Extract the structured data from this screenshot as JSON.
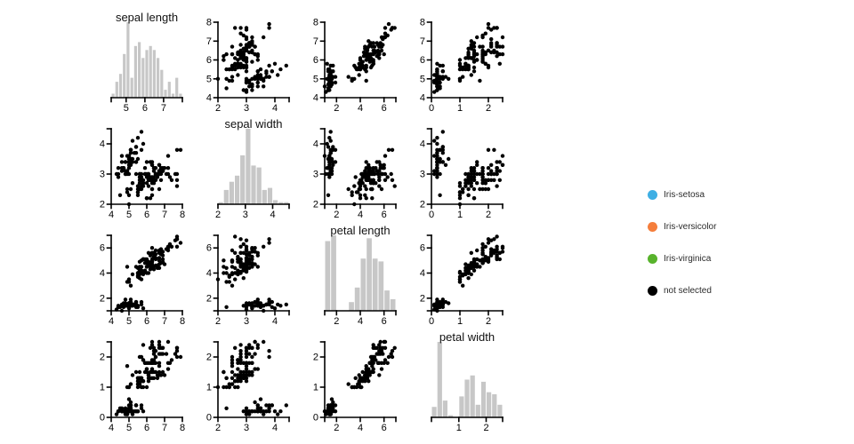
{
  "legend": {
    "items": [
      {
        "label": "Iris-setosa",
        "color": "#3fafe4"
      },
      {
        "label": "Iris-versicolor",
        "color": "#f57e3c"
      },
      {
        "label": "Iris-virginica",
        "color": "#58b32c"
      },
      {
        "label": "not selected",
        "color": "#000000"
      }
    ]
  },
  "chart_data": {
    "type": "scatter",
    "subtype": "scatterplot-matrix",
    "fields": [
      "sepal length",
      "sepal width",
      "petal length",
      "petal width"
    ],
    "field_keys": [
      "sepal_length",
      "sepal_width",
      "petal_length",
      "petal_width"
    ],
    "point_color": "#000000",
    "bar_color": "#c7c7c7",
    "legend_position": "right",
    "grid": "off",
    "scales": {
      "sepal_length": {
        "domain": [
          4,
          8
        ],
        "ticks": [
          4,
          5,
          6,
          7,
          8
        ]
      },
      "sepal_width": {
        "domain": [
          2,
          4.5
        ],
        "ticks": [
          2,
          3,
          4
        ]
      },
      "petal_length": {
        "domain": [
          1,
          7
        ],
        "ticks": [
          2,
          4,
          6
        ]
      },
      "petal_width": {
        "domain": [
          0,
          2.5
        ],
        "ticks": [
          0,
          1,
          2
        ]
      }
    },
    "histograms": {
      "sepal_length": {
        "domain": [
          4.2,
          8.0
        ],
        "ticks": [
          5,
          6,
          7
        ],
        "bin_start": 4.2,
        "bin_step": 0.2
      },
      "sepal_width": {
        "domain": [
          2.0,
          4.6
        ],
        "ticks": [
          2,
          3,
          4
        ],
        "bin_start": 2.0,
        "bin_step": 0.2
      },
      "petal_length": {
        "domain": [
          1.0,
          7.0
        ],
        "ticks": [
          2,
          4,
          6
        ],
        "bin_start": 1.0,
        "bin_step": 0.5
      },
      "petal_width": {
        "domain": [
          0.0,
          2.6
        ],
        "ticks": [
          1,
          2
        ],
        "bin_start": 0.0,
        "bin_step": 0.2
      }
    },
    "data": {
      "sepal_length": [
        5.1,
        4.9,
        4.7,
        4.6,
        5.0,
        5.4,
        4.6,
        5.0,
        4.4,
        4.9,
        5.4,
        4.8,
        4.8,
        4.3,
        5.8,
        5.7,
        5.4,
        5.1,
        5.7,
        5.1,
        5.4,
        5.1,
        4.6,
        5.1,
        4.8,
        5.0,
        5.0,
        5.2,
        5.2,
        4.7,
        4.8,
        5.4,
        5.2,
        5.5,
        4.9,
        5.0,
        5.5,
        4.9,
        4.4,
        5.1,
        5.0,
        4.5,
        4.4,
        5.0,
        5.1,
        4.8,
        5.1,
        4.6,
        5.3,
        5.0,
        7.0,
        6.4,
        6.9,
        5.5,
        6.5,
        5.7,
        6.3,
        4.9,
        6.6,
        5.2,
        5.0,
        5.9,
        6.0,
        6.1,
        5.6,
        6.7,
        5.6,
        5.8,
        6.2,
        5.6,
        5.9,
        6.1,
        6.3,
        6.1,
        6.4,
        6.6,
        6.8,
        6.7,
        6.0,
        5.7,
        5.5,
        5.5,
        5.8,
        6.0,
        5.4,
        6.0,
        6.7,
        6.3,
        5.6,
        5.5,
        5.5,
        6.1,
        5.8,
        5.0,
        5.6,
        5.7,
        5.7,
        6.2,
        5.1,
        5.7,
        6.3,
        5.8,
        7.1,
        6.3,
        6.5,
        7.6,
        4.9,
        7.3,
        6.7,
        7.2,
        6.5,
        6.4,
        6.8,
        5.7,
        5.8,
        6.4,
        6.5,
        7.7,
        7.7,
        6.0,
        6.9,
        5.6,
        7.7,
        6.3,
        6.7,
        7.2,
        6.2,
        6.1,
        6.4,
        7.2,
        7.4,
        7.9,
        6.4,
        6.3,
        6.1,
        7.7,
        6.3,
        6.4,
        6.0,
        6.9,
        6.7,
        6.9,
        5.8,
        6.8,
        6.7,
        6.7,
        6.3,
        6.5,
        6.2,
        5.9
      ],
      "sepal_width": [
        3.5,
        3.0,
        3.2,
        3.1,
        3.6,
        3.9,
        3.4,
        3.4,
        2.9,
        3.1,
        3.7,
        3.4,
        3.0,
        3.0,
        4.0,
        4.4,
        3.9,
        3.5,
        3.8,
        3.8,
        3.4,
        3.7,
        3.6,
        3.3,
        3.4,
        3.0,
        3.4,
        3.5,
        3.4,
        3.2,
        3.1,
        3.4,
        4.1,
        4.2,
        3.1,
        3.2,
        3.5,
        3.6,
        3.0,
        3.4,
        3.5,
        2.3,
        3.2,
        3.5,
        3.8,
        3.0,
        3.8,
        3.2,
        3.7,
        3.3,
        3.2,
        3.2,
        3.1,
        2.3,
        2.8,
        2.8,
        3.3,
        2.4,
        2.9,
        2.7,
        2.0,
        3.0,
        2.2,
        2.9,
        2.9,
        3.1,
        3.0,
        2.7,
        2.2,
        2.5,
        3.2,
        2.8,
        2.5,
        2.8,
        2.9,
        3.0,
        2.8,
        3.0,
        2.9,
        2.6,
        2.4,
        2.4,
        2.7,
        2.7,
        3.0,
        3.4,
        3.1,
        2.3,
        3.0,
        2.5,
        2.6,
        3.0,
        2.6,
        2.3,
        2.7,
        3.0,
        2.9,
        2.9,
        2.5,
        2.8,
        3.3,
        2.7,
        3.0,
        2.9,
        3.0,
        3.0,
        2.5,
        2.9,
        2.5,
        3.6,
        3.2,
        2.7,
        3.0,
        2.5,
        2.8,
        3.2,
        3.0,
        3.8,
        2.6,
        2.2,
        3.2,
        2.8,
        2.8,
        2.7,
        3.3,
        3.2,
        2.8,
        3.0,
        2.8,
        3.0,
        2.8,
        3.8,
        2.8,
        2.8,
        2.6,
        3.0,
        3.4,
        3.1,
        3.0,
        3.1,
        3.1,
        3.1,
        2.7,
        3.2,
        3.3,
        3.0,
        2.5,
        3.0,
        3.4,
        3.0
      ],
      "petal_length": [
        1.4,
        1.4,
        1.3,
        1.5,
        1.4,
        1.7,
        1.4,
        1.5,
        1.4,
        1.5,
        1.5,
        1.6,
        1.4,
        1.1,
        1.2,
        1.5,
        1.3,
        1.4,
        1.7,
        1.5,
        1.7,
        1.5,
        1.0,
        1.7,
        1.9,
        1.6,
        1.6,
        1.5,
        1.4,
        1.6,
        1.6,
        1.5,
        1.5,
        1.4,
        1.5,
        1.2,
        1.3,
        1.4,
        1.3,
        1.5,
        1.3,
        1.3,
        1.3,
        1.6,
        1.9,
        1.4,
        1.6,
        1.4,
        1.5,
        1.4,
        4.7,
        4.5,
        4.9,
        4.0,
        4.6,
        4.5,
        4.7,
        3.3,
        4.6,
        3.9,
        3.5,
        4.2,
        4.0,
        4.7,
        3.6,
        4.4,
        4.5,
        4.1,
        4.5,
        3.9,
        4.8,
        4.0,
        4.9,
        4.7,
        4.3,
        4.4,
        4.8,
        5.0,
        4.5,
        3.5,
        3.8,
        3.7,
        3.9,
        5.1,
        4.5,
        4.5,
        4.7,
        4.4,
        4.1,
        4.0,
        4.4,
        4.6,
        4.0,
        3.3,
        4.2,
        4.2,
        4.2,
        4.3,
        3.0,
        4.1,
        6.0,
        5.1,
        5.9,
        5.6,
        5.8,
        6.6,
        4.5,
        6.3,
        5.8,
        6.1,
        5.1,
        5.3,
        5.5,
        5.0,
        5.1,
        5.3,
        5.5,
        6.7,
        6.9,
        5.0,
        5.7,
        4.9,
        6.7,
        4.9,
        5.7,
        6.0,
        4.8,
        4.9,
        5.6,
        5.8,
        6.1,
        6.4,
        5.6,
        5.1,
        5.6,
        6.1,
        5.6,
        5.5,
        4.8,
        5.4,
        5.6,
        5.1,
        5.1,
        5.9,
        5.7,
        5.2,
        5.0,
        5.2,
        5.4,
        5.1
      ],
      "petal_width": [
        0.2,
        0.2,
        0.2,
        0.2,
        0.2,
        0.4,
        0.3,
        0.2,
        0.2,
        0.1,
        0.2,
        0.2,
        0.1,
        0.1,
        0.2,
        0.4,
        0.4,
        0.3,
        0.3,
        0.3,
        0.2,
        0.4,
        0.2,
        0.5,
        0.2,
        0.2,
        0.4,
        0.2,
        0.2,
        0.2,
        0.2,
        0.4,
        0.1,
        0.2,
        0.2,
        0.2,
        0.2,
        0.1,
        0.2,
        0.2,
        0.3,
        0.3,
        0.2,
        0.6,
        0.4,
        0.3,
        0.2,
        0.2,
        0.2,
        0.2,
        1.4,
        1.5,
        1.5,
        1.3,
        1.5,
        1.3,
        1.6,
        1.0,
        1.3,
        1.4,
        1.0,
        1.5,
        1.0,
        1.4,
        1.3,
        1.4,
        1.5,
        1.0,
        1.5,
        1.1,
        1.8,
        1.3,
        1.5,
        1.2,
        1.3,
        1.4,
        1.4,
        1.7,
        1.5,
        1.0,
        1.1,
        1.0,
        1.2,
        1.6,
        1.5,
        1.6,
        1.5,
        1.3,
        1.3,
        1.3,
        1.2,
        1.4,
        1.2,
        1.0,
        1.3,
        1.2,
        1.3,
        1.3,
        1.1,
        1.3,
        2.5,
        1.9,
        2.1,
        1.8,
        2.2,
        2.1,
        1.7,
        1.8,
        1.8,
        2.5,
        2.0,
        1.9,
        2.1,
        2.0,
        2.4,
        2.3,
        1.8,
        2.2,
        2.3,
        1.5,
        2.3,
        2.0,
        2.0,
        1.8,
        2.1,
        1.8,
        1.8,
        1.8,
        2.1,
        1.6,
        1.9,
        2.0,
        2.2,
        1.5,
        1.4,
        2.3,
        2.4,
        1.8,
        1.8,
        2.1,
        2.4,
        2.3,
        1.9,
        2.3,
        2.5,
        2.3,
        1.9,
        2.0,
        2.3,
        1.8
      ]
    }
  }
}
